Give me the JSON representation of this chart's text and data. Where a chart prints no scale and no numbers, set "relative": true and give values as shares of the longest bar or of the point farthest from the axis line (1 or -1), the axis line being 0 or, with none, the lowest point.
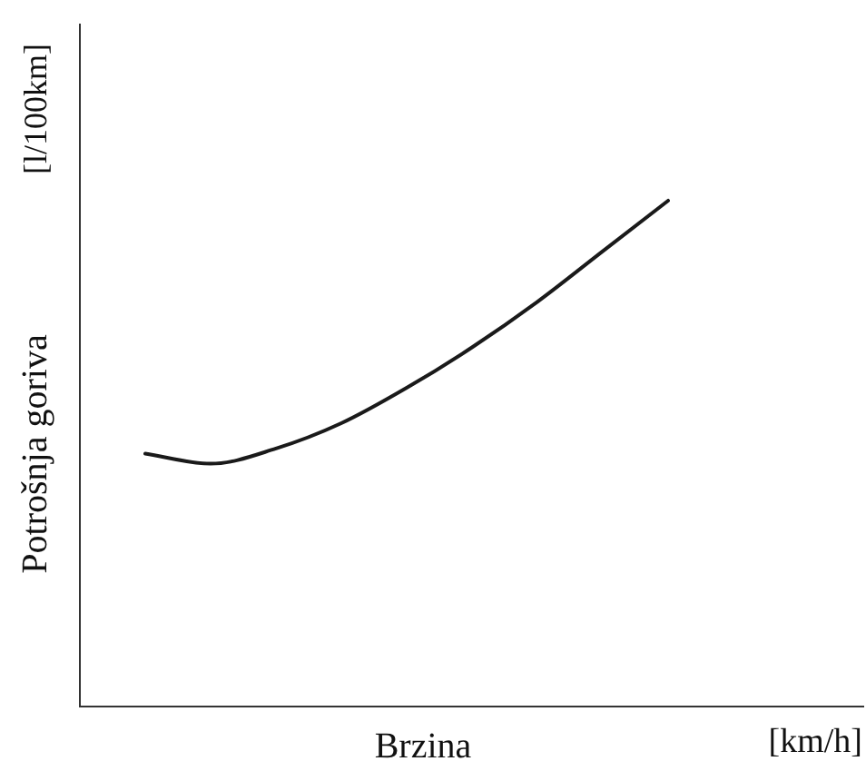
{
  "chart_data": {
    "type": "line",
    "relative": true,
    "xlabel": "Brzina [km/h]",
    "ylabel": "Potrošnja goriva [l/100km]",
    "categories": [
      null,
      null,
      null,
      null,
      null,
      null,
      null,
      null,
      null,
      null,
      null,
      null,
      null
    ],
    "series": [
      {
        "color": "#1a1a1a",
        "values": [
          null,
          0.5,
          0.48,
          0.51,
          0.56,
          0.63,
          0.71,
          0.8,
          0.9,
          1.0,
          null,
          null,
          null
        ]
      }
    ],
    "legend": false,
    "marker": "none",
    "line_style": "solid"
  }
}
